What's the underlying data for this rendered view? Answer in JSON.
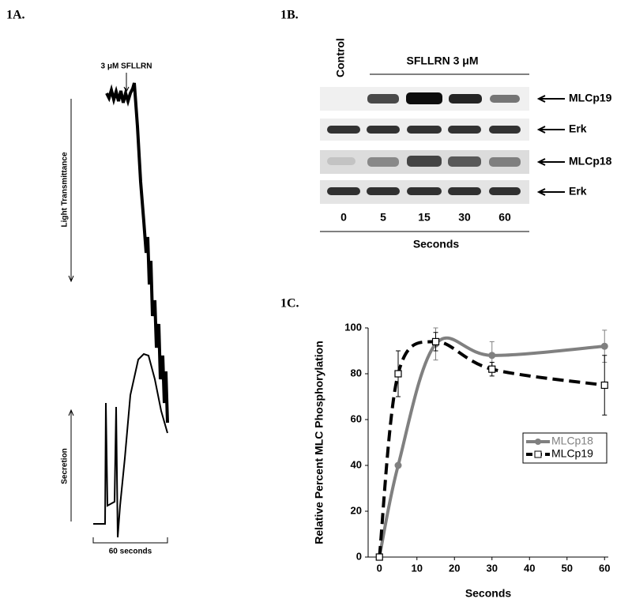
{
  "panels": {
    "a": {
      "label": "1A.",
      "stimulus": "3 μM SFLLRN",
      "upper_label": "Light Transmittance",
      "lower_label": "Secretion",
      "scale_label": "60 seconds"
    },
    "b": {
      "label": "1B.",
      "control_label": "Control",
      "treatment_label": "SFLLRN 3 μM",
      "rows": [
        "MLCp19",
        "Erk",
        "MLCp18",
        "Erk"
      ],
      "lanes": [
        0,
        5,
        15,
        30,
        60
      ],
      "x_label": "Seconds"
    },
    "c": {
      "label": "1C."
    }
  },
  "chart_data": {
    "type": "line",
    "x_label": "Seconds",
    "y_label": "Relative Percent MLC Phosphorylation",
    "x": [
      0,
      5,
      15,
      30,
      60
    ],
    "series": [
      {
        "name": "MLCp18",
        "color": "#808080",
        "dash": false,
        "marker": "circle",
        "values": [
          0,
          40,
          93,
          88,
          92
        ],
        "errors": [
          null,
          null,
          7,
          6,
          7
        ]
      },
      {
        "name": "MLCp19",
        "color": "#000000",
        "dash": true,
        "marker": "square",
        "values": [
          0,
          80,
          94,
          82,
          75
        ],
        "errors": [
          null,
          10,
          4,
          3,
          13
        ]
      }
    ],
    "xlim": [
      -3,
      61
    ],
    "ylim": [
      0,
      100
    ],
    "xticks": [
      0,
      10,
      20,
      30,
      40,
      50,
      60
    ],
    "yticks": [
      0,
      20,
      40,
      60,
      80,
      100
    ],
    "legend": "center right"
  }
}
